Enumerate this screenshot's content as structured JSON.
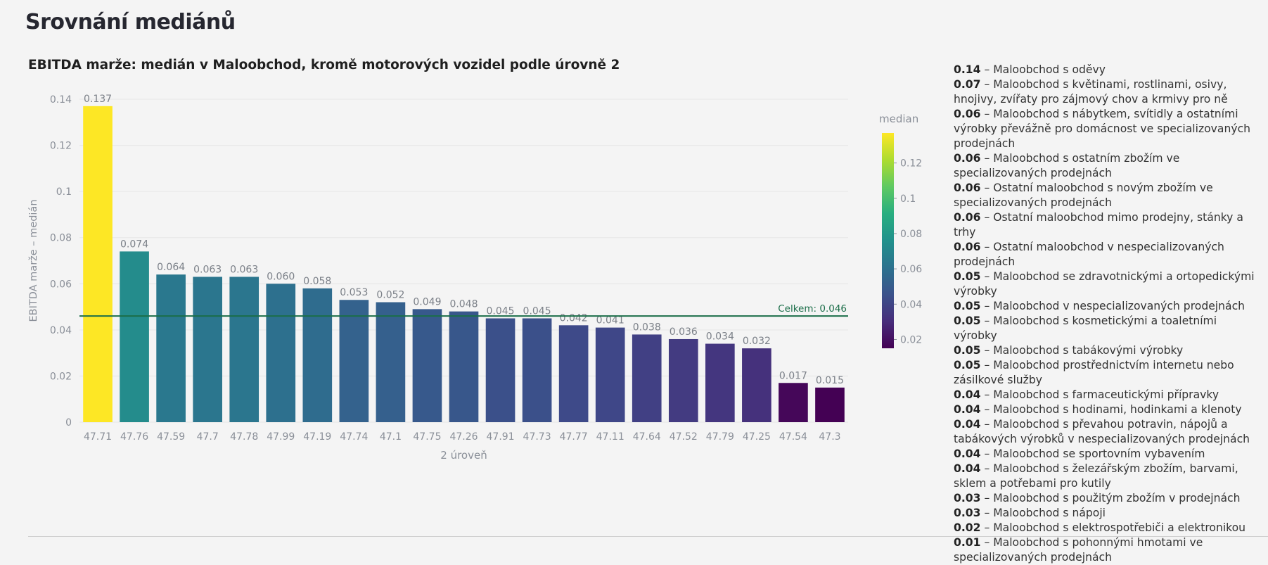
{
  "page": {
    "title": "Srovnání mediánů"
  },
  "chart_data": {
    "type": "bar",
    "title": "EBITDA marže: medián v Maloobchod, kromě motorových vozidel podle úrovně 2",
    "xlabel": "2 úroveň",
    "ylabel": "EBITDA marže – medián",
    "ylim": [
      0,
      0.14
    ],
    "yticks": [
      "0",
      "0.02",
      "0.04",
      "0.06",
      "0.08",
      "0.1",
      "0.12",
      "0.14"
    ],
    "categories": [
      "47.71",
      "47.76",
      "47.59",
      "47.7",
      "47.78",
      "47.99",
      "47.19",
      "47.74",
      "47.1",
      "47.75",
      "47.26",
      "47.91",
      "47.73",
      "47.77",
      "47.11",
      "47.64",
      "47.52",
      "47.79",
      "47.25",
      "47.54",
      "47.3"
    ],
    "values": [
      0.137,
      0.074,
      0.064,
      0.063,
      0.063,
      0.06,
      0.058,
      0.053,
      0.052,
      0.049,
      0.048,
      0.045,
      0.045,
      0.042,
      0.041,
      0.038,
      0.036,
      0.034,
      0.032,
      0.017,
      0.015
    ],
    "labels": [
      "0.137",
      "0.074",
      "0.064",
      "0.063",
      "0.063",
      "0.060",
      "0.058",
      "0.053",
      "0.052",
      "0.049",
      "0.048",
      "0.045",
      "0.045",
      "0.042",
      "0.041",
      "0.038",
      "0.036",
      "0.034",
      "0.032",
      "0.017",
      "0.015"
    ],
    "reference_line": {
      "value": 0.046,
      "label": "Celkem: 0.046",
      "color": "#1b6e49"
    },
    "colorscale": {
      "title": "median",
      "name": "viridis",
      "range": [
        0.015,
        0.137
      ],
      "ticks": [
        "0.12",
        "0.1",
        "0.08",
        "0.06",
        "0.04",
        "0.02"
      ]
    },
    "grid": true
  },
  "legend": {
    "items": [
      {
        "value": "0.14",
        "label": "Maloobchod s oděvy"
      },
      {
        "value": "0.07",
        "label": "Maloobchod s květinami, rostlinami, osivy, hnojivy, zvířaty pro zájmový chov a krmivy pro ně"
      },
      {
        "value": "0.06",
        "label": "Maloobchod s nábytkem, svítidly a ostatními výrobky převážně pro domácnost ve specializovaných prodejnách"
      },
      {
        "value": "0.06",
        "label": "Maloobchod s ostatním zbožím ve specializovaných prodejnách"
      },
      {
        "value": "0.06",
        "label": "Ostatní maloobchod s novým zbožím ve specializovaných prodejnách"
      },
      {
        "value": "0.06",
        "label": "Ostatní maloobchod mimo prodejny, stánky a trhy"
      },
      {
        "value": "0.06",
        "label": "Ostatní maloobchod v nespecializovaných prodejnách"
      },
      {
        "value": "0.05",
        "label": "Maloobchod se zdravotnickými a ortopedickými výrobky"
      },
      {
        "value": "0.05",
        "label": "Maloobchod v nespecializovaných prodejnách"
      },
      {
        "value": "0.05",
        "label": "Maloobchod s kosmetickými a toaletními výrobky"
      },
      {
        "value": "0.05",
        "label": "Maloobchod s tabákovými výrobky"
      },
      {
        "value": "0.05",
        "label": "Maloobchod prostřednictvím internetu nebo zásilkové služby"
      },
      {
        "value": "0.04",
        "label": "Maloobchod s farmaceutickými přípravky"
      },
      {
        "value": "0.04",
        "label": "Maloobchod s hodinami, hodinkami a klenoty"
      },
      {
        "value": "0.04",
        "label": "Maloobchod s převahou potravin, nápojů a tabákových výrobků v nespecializovaných prodejnách"
      },
      {
        "value": "0.04",
        "label": "Maloobchod se sportovním vybavením"
      },
      {
        "value": "0.04",
        "label": "Maloobchod s železářským zbožím, barvami, sklem a potřebami pro kutily"
      },
      {
        "value": "0.03",
        "label": "Maloobchod s použitým zbožím v prodejnách"
      },
      {
        "value": "0.03",
        "label": "Maloobchod s nápoji"
      },
      {
        "value": "0.02",
        "label": "Maloobchod s elektrospotřebiči a elektronikou"
      },
      {
        "value": "0.01",
        "label": "Maloobchod s pohonnými hmotami ve specializovaných prodejnách"
      }
    ]
  }
}
